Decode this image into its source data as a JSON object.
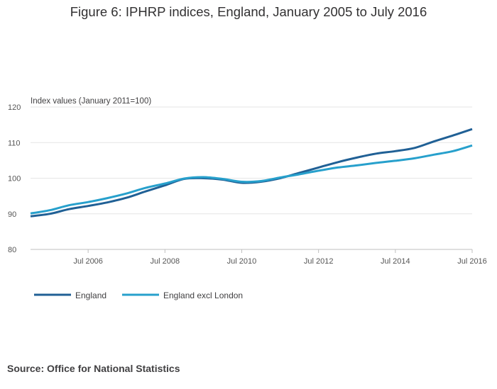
{
  "title": "Figure 6: IPHRP indices, England, January 2005 to July 2016",
  "source": "Source: Office for National Statistics",
  "colors": {
    "England": "#206095",
    "England excl London": "#27a0cc",
    "grid": "#e6e6e6",
    "axis": "#bfbfbf"
  },
  "chart_data": {
    "type": "line",
    "title": "Figure 6: IPHRP indices, England, January 2005 to July 2016",
    "ylabel": "Index values (January 2011=100)",
    "xlabel": "",
    "ylim": [
      80,
      120
    ],
    "yticks": [
      80,
      90,
      100,
      110,
      120
    ],
    "xlim": [
      "2005-01",
      "2016-07"
    ],
    "xticks": [
      "2006-07",
      "2008-07",
      "2010-07",
      "2012-07",
      "2014-07",
      "2016-07"
    ],
    "xtick_labels": [
      "Jul 2006",
      "Jul 2008",
      "Jul 2010",
      "Jul 2012",
      "Jul 2014",
      "Jul 2016"
    ],
    "grid": true,
    "legend_position": "bottom-left",
    "x": [
      "2005-01",
      "2005-07",
      "2006-01",
      "2006-07",
      "2007-01",
      "2007-07",
      "2008-01",
      "2008-07",
      "2009-01",
      "2009-07",
      "2010-01",
      "2010-07",
      "2011-01",
      "2011-07",
      "2012-01",
      "2012-07",
      "2013-01",
      "2013-07",
      "2014-01",
      "2014-07",
      "2015-01",
      "2015-07",
      "2016-01",
      "2016-07"
    ],
    "series": [
      {
        "name": "England",
        "values": [
          89.3,
          90.0,
          91.3,
          92.2,
          93.2,
          94.5,
          96.3,
          98.0,
          99.8,
          100.0,
          99.6,
          98.7,
          99.0,
          100.0,
          101.5,
          103.0,
          104.5,
          105.8,
          106.9,
          107.6,
          108.5,
          110.3,
          112.0,
          113.8
        ]
      },
      {
        "name": "England excl London",
        "values": [
          90.1,
          91.0,
          92.4,
          93.3,
          94.4,
          95.7,
          97.3,
          98.5,
          99.9,
          100.3,
          99.8,
          99.0,
          99.2,
          100.2,
          101.1,
          102.1,
          103.0,
          103.6,
          104.3,
          104.9,
          105.6,
          106.6,
          107.6,
          109.2
        ]
      }
    ]
  }
}
